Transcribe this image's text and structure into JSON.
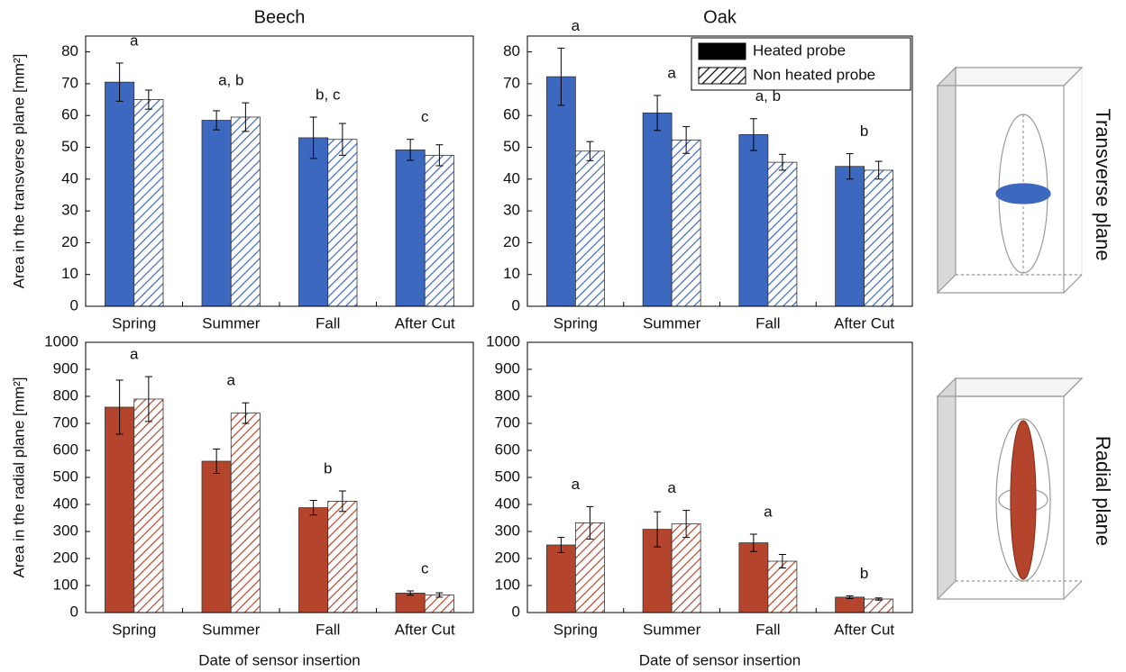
{
  "chart_data": [
    {
      "type": "bar",
      "title": "Beech",
      "ylabel": "Area in the transverse plane [mm²]",
      "categories": [
        "Spring",
        "Summer",
        "Fall",
        "After Cut"
      ],
      "series": [
        {
          "name": "Heated probe",
          "color": "#3d68bf",
          "hatch": false,
          "values": [
            70.5,
            58.5,
            53,
            49.2
          ],
          "errors": [
            6,
            3,
            6.5,
            3.3
          ]
        },
        {
          "name": "Non heated probe",
          "color": "#3d68bf",
          "hatch": true,
          "values": [
            65,
            59.5,
            52.5,
            47.5
          ],
          "errors": [
            3,
            4.5,
            5,
            3.3
          ]
        }
      ],
      "annotations": [
        "a",
        "a, b",
        "b, c",
        "c"
      ],
      "ylim": [
        0,
        85
      ],
      "yticks": [
        0,
        10,
        20,
        30,
        40,
        50,
        60,
        70,
        80
      ]
    },
    {
      "type": "bar",
      "title": "Oak",
      "categories": [
        "Spring",
        "Summer",
        "Fall",
        "After Cut"
      ],
      "series": [
        {
          "name": "Heated probe",
          "color": "#3d68bf",
          "hatch": false,
          "values": [
            72.2,
            60.8,
            54,
            44
          ],
          "errors": [
            9,
            5.5,
            5,
            4
          ]
        },
        {
          "name": "Non heated probe",
          "color": "#3d68bf",
          "hatch": true,
          "values": [
            48.8,
            52.3,
            45.3,
            42.8
          ],
          "errors": [
            3,
            4.2,
            2.5,
            2.8
          ]
        }
      ],
      "annotations": [
        "a",
        "a",
        "a, b",
        "b"
      ],
      "ylim": [
        0,
        85
      ],
      "yticks": [
        0,
        10,
        20,
        30,
        40,
        50,
        60,
        70,
        80
      ],
      "legend": "upper right",
      "legend_color": "#000000"
    },
    {
      "type": "bar",
      "ylabel": "Area in the radial plane [mm²]",
      "xlabel": "Date of sensor insertion",
      "categories": [
        "Spring",
        "Summer",
        "Fall",
        "After Cut"
      ],
      "series": [
        {
          "name": "Heated probe",
          "color": "#b4452c",
          "hatch": false,
          "values": [
            760,
            560,
            388,
            72
          ],
          "errors": [
            100,
            45,
            27,
            8
          ]
        },
        {
          "name": "Non heated probe",
          "color": "#b4452c",
          "hatch": true,
          "values": [
            790,
            738,
            412,
            65
          ],
          "errors": [
            83,
            38,
            38,
            8
          ]
        }
      ],
      "annotations": [
        "a",
        "a",
        "b",
        "c"
      ],
      "ylim": [
        0,
        1000
      ],
      "yticks": [
        0,
        100,
        200,
        300,
        400,
        500,
        600,
        700,
        800,
        900,
        1000
      ]
    },
    {
      "type": "bar",
      "xlabel": "Date of sensor insertion",
      "categories": [
        "Spring",
        "Summer",
        "Fall",
        "After Cut"
      ],
      "series": [
        {
          "name": "Heated probe",
          "color": "#b4452c",
          "hatch": false,
          "values": [
            250,
            308,
            258,
            57
          ],
          "errors": [
            28,
            65,
            32,
            5
          ]
        },
        {
          "name": "Non heated probe",
          "color": "#b4452c",
          "hatch": true,
          "values": [
            332,
            328,
            190,
            50
          ],
          "errors": [
            60,
            50,
            25,
            4
          ]
        }
      ],
      "annotations": [
        "a",
        "a",
        "a",
        "b"
      ],
      "ylim": [
        0,
        1000
      ],
      "yticks": [
        0,
        100,
        200,
        300,
        400,
        500,
        600,
        700,
        800,
        900,
        1000
      ]
    }
  ],
  "row_labels": [
    "Transverse plane",
    "Radial plane"
  ]
}
